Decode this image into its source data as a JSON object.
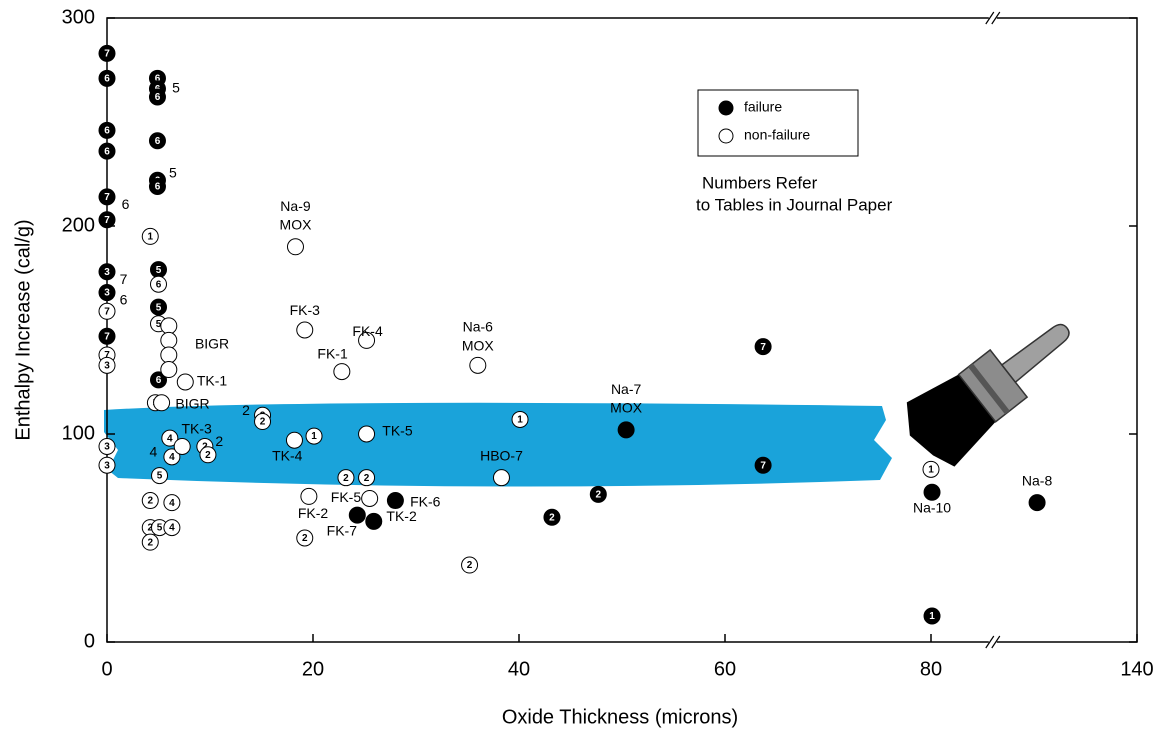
{
  "chart_data": {
    "type": "scatter",
    "xlabel": "Oxide Thickness (microns)",
    "ylabel": "Enthalpy Increase (cal/g)",
    "xlim": [
      0,
      140
    ],
    "x_break": [
      86,
      126
    ],
    "xticks": [
      0,
      20,
      40,
      60,
      80,
      140
    ],
    "ylim": [
      0,
      300
    ],
    "yticks": [
      0,
      100,
      200,
      300
    ],
    "legend": "upper right",
    "note": [
      "Numbers Refer",
      "to Tables in Journal Paper"
    ],
    "series": [
      {
        "name": "failure",
        "filled": true,
        "color": "#000000",
        "x": [
          0,
          0,
          0,
          0,
          0,
          0,
          0,
          0,
          0,
          4.9,
          4.9,
          4.9,
          4.9,
          4.9,
          4.9,
          5,
          5,
          5,
          63.7,
          63.7,
          47.7,
          43.2,
          80.1,
          50.4,
          28,
          24.3,
          25.9,
          80.1,
          130.3
        ],
        "values": [
          283,
          271,
          246,
          236,
          214,
          203,
          178,
          168,
          147,
          271,
          266,
          262,
          241,
          222,
          219,
          179,
          161,
          126,
          142,
          85,
          71,
          60,
          12.5,
          102,
          68,
          61,
          58,
          72,
          67
        ],
        "markers": [
          "7",
          "6",
          "6",
          "6",
          "7",
          "7",
          "3",
          "3",
          "7",
          "6",
          "6",
          "6",
          "6",
          "6",
          "6",
          "5",
          "5",
          "6",
          "7",
          "7",
          "2",
          "2",
          "1",
          null,
          null,
          null,
          null,
          null,
          null
        ]
      },
      {
        "name": "non-failure",
        "filled": false,
        "color": "#000000",
        "x": [
          0,
          0,
          0,
          0,
          0,
          4.2,
          5,
          5,
          4.7,
          5.1,
          4.2,
          6.3,
          4.2,
          5.1,
          6.3,
          4.2,
          6,
          6,
          6,
          6,
          7.6,
          5.3,
          6.1,
          6.3,
          7.3,
          9.5,
          9.8,
          15.1,
          15.1,
          18.2,
          20.1,
          19.2,
          18.3,
          25.2,
          22.8,
          36,
          25.2,
          40.1,
          38.3,
          23.2,
          25.2,
          19.6,
          25.5,
          19.2,
          35.2,
          80
        ],
        "values": [
          159,
          138,
          133,
          94,
          85,
          195,
          172,
          153,
          115,
          80,
          68,
          67,
          55,
          55,
          55,
          48,
          152,
          145,
          138,
          131,
          125,
          115,
          98,
          89,
          94,
          94,
          90,
          109,
          106,
          97,
          99,
          150,
          190,
          145,
          130,
          133,
          100,
          107,
          79,
          79,
          79,
          70,
          69,
          50,
          37,
          83
        ],
        "markers": [
          "7",
          "7",
          "3",
          "3",
          "3",
          "1",
          "6",
          "5",
          "5",
          "5",
          "2",
          "4",
          "2",
          "5",
          "4",
          "2",
          null,
          null,
          null,
          null,
          null,
          null,
          "4",
          "4",
          null,
          "2",
          "2",
          "2",
          "2",
          null,
          "1",
          null,
          null,
          null,
          null,
          null,
          null,
          "1",
          null,
          "2",
          "2",
          null,
          null,
          "2",
          "2",
          "1"
        ]
      }
    ],
    "annotations": [
      {
        "text": "Na-9",
        "x": 18.3,
        "y": 209
      },
      {
        "text": "MOX",
        "x": 18.3,
        "y": 200
      },
      {
        "text": "FK-3",
        "x": 19.2,
        "y": 159
      },
      {
        "text": "FK-4",
        "x": 25.3,
        "y": 149
      },
      {
        "text": "FK-1",
        "x": 21.9,
        "y": 138
      },
      {
        "text": "Na-6",
        "x": 36,
        "y": 151
      },
      {
        "text": "MOX",
        "x": 36,
        "y": 142
      },
      {
        "text": "BIGR",
        "x": 10.2,
        "y": 143
      },
      {
        "text": "TK-1",
        "x": 10.2,
        "y": 125
      },
      {
        "text": "BIGR",
        "x": 8.3,
        "y": 114
      },
      {
        "text": "TK-3",
        "x": 8.7,
        "y": 102
      },
      {
        "text": "TK-4",
        "x": 17.5,
        "y": 89
      },
      {
        "text": "TK-5",
        "x": 28.2,
        "y": 101
      },
      {
        "text": "2",
        "x": 13.5,
        "y": 111
      },
      {
        "text": "2",
        "x": 10.9,
        "y": 96
      },
      {
        "text": "4",
        "x": 4.5,
        "y": 91
      },
      {
        "text": "Na-7",
        "x": 50.4,
        "y": 121
      },
      {
        "text": "MOX",
        "x": 50.4,
        "y": 112
      },
      {
        "text": "HBO-7",
        "x": 38.3,
        "y": 89
      },
      {
        "text": "FK-5",
        "x": 23.2,
        "y": 69
      },
      {
        "text": "FK-6",
        "x": 30.9,
        "y": 67
      },
      {
        "text": "FK-2",
        "x": 20,
        "y": 61.5
      },
      {
        "text": "TK-2",
        "x": 28.6,
        "y": 60
      },
      {
        "text": "FK-7",
        "x": 22.8,
        "y": 53
      },
      {
        "text": "Na-10",
        "x": 80.1,
        "y": 64
      },
      {
        "text": "Na-8",
        "x": 130.3,
        "y": 77
      },
      {
        "text": "5",
        "x": 6.7,
        "y": 266
      },
      {
        "text": "5",
        "x": 6.4,
        "y": 225
      },
      {
        "text": "6",
        "x": 1.8,
        "y": 210
      },
      {
        "text": "7",
        "x": 1.6,
        "y": 174
      },
      {
        "text": "6",
        "x": 1.6,
        "y": 164
      }
    ]
  }
}
